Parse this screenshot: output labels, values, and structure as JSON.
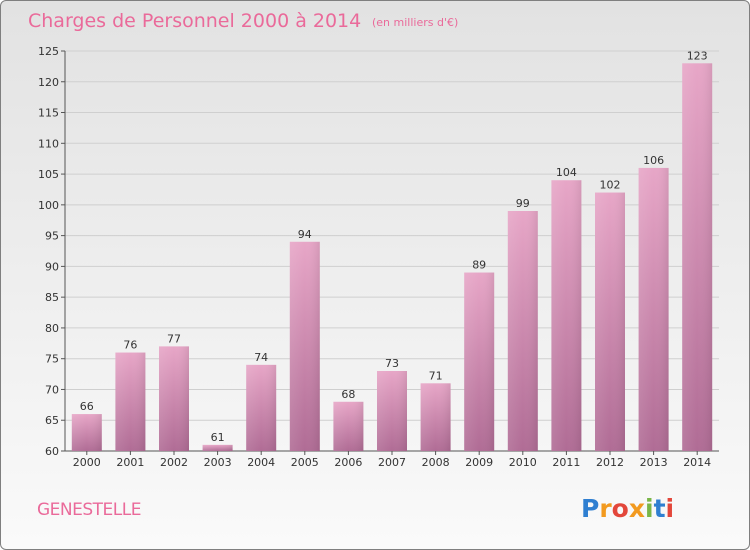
{
  "header": {
    "title": "Charges de Personnel 2000 à 2014",
    "subtitle": "(en milliers d'€)"
  },
  "footer": {
    "commune": "GENESTELLE",
    "logo": "Proxiti"
  },
  "colors": {
    "title": "#ea6a9a",
    "bar_top": "#e7a6c7",
    "bar_bottom": "#b06c95",
    "grid": "#cfcfcf"
  },
  "chart_data": {
    "type": "bar",
    "categories": [
      "2000",
      "2001",
      "2002",
      "2003",
      "2004",
      "2005",
      "2006",
      "2007",
      "2008",
      "2009",
      "2010",
      "2011",
      "2012",
      "2013",
      "2014"
    ],
    "values": [
      66,
      76,
      77,
      61,
      74,
      94,
      68,
      73,
      71,
      89,
      99,
      104,
      102,
      106,
      123
    ],
    "value_labels": [
      "66",
      "76",
      "77",
      "61",
      "74",
      "94",
      "68",
      "73",
      "71",
      "89",
      "99",
      "104",
      "102",
      "106",
      "123"
    ],
    "title": "Charges de Personnel 2000 à 2014",
    "subtitle": "(en milliers d'€)",
    "xlabel": "",
    "ylabel": "",
    "ylim": [
      60,
      125
    ],
    "yticks": [
      60,
      65,
      70,
      75,
      80,
      85,
      90,
      95,
      100,
      105,
      110,
      115,
      120,
      125
    ],
    "grid": true,
    "legend": "none"
  }
}
